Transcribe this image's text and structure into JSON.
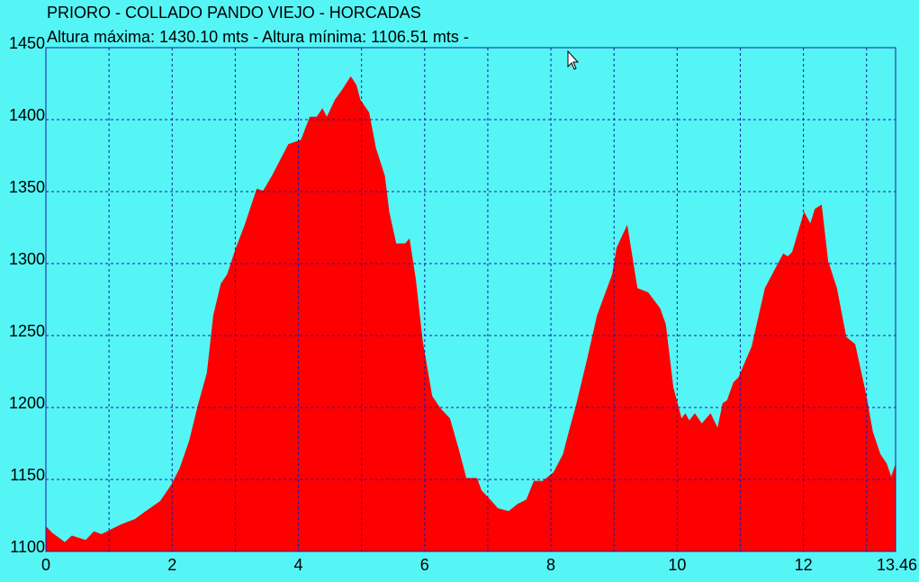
{
  "chart_data": {
    "type": "area",
    "title": "PRIORO - COLLADO PANDO VIEJO - HORCADAS",
    "subtitle": "Altura máxima: 1430.10 mts - Altura mínima: 1106.51 mts -",
    "color": "#ff0000",
    "background": "#55f5f5",
    "grid": true,
    "xlim": [
      0,
      13.46
    ],
    "ylim": [
      1100,
      1450
    ],
    "xticks": [
      0,
      2,
      4,
      6,
      8,
      10,
      12,
      13.46
    ],
    "x_minor_ticks": [
      1,
      3,
      5,
      7,
      9,
      11,
      13
    ],
    "yticks": [
      1100,
      1150,
      1200,
      1250,
      1300,
      1350,
      1400,
      1450
    ],
    "x": [
      0,
      0.1,
      0.3,
      0.41,
      0.63,
      0.76,
      0.88,
      1.2,
      1.41,
      1.55,
      1.81,
      1.98,
      2.12,
      2.27,
      2.41,
      2.55,
      2.65,
      2.77,
      2.87,
      3.01,
      3.15,
      3.34,
      3.44,
      3.58,
      3.84,
      4.04,
      4.18,
      4.29,
      4.38,
      4.45,
      4.58,
      4.69,
      4.83,
      4.92,
      4.98,
      5.12,
      5.23,
      5.37,
      5.44,
      5.55,
      5.69,
      5.76,
      5.86,
      5.97,
      6.12,
      6.26,
      6.4,
      6.54,
      6.66,
      6.83,
      6.9,
      7.04,
      7.16,
      7.33,
      7.47,
      7.61,
      7.73,
      7.87,
      8.04,
      8.19,
      8.3,
      8.4,
      8.57,
      8.73,
      8.97,
      9.04,
      9.21,
      9.37,
      9.54,
      9.73,
      9.82,
      9.94,
      10.07,
      10.13,
      10.19,
      10.28,
      10.39,
      10.53,
      10.64,
      10.72,
      10.79,
      10.89,
      10.97,
      11.18,
      11.39,
      11.56,
      11.68,
      11.75,
      11.82,
      12.01,
      12.11,
      12.18,
      12.29,
      12.39,
      12.53,
      12.68,
      12.82,
      13.0,
      13.1,
      13.22,
      13.32,
      13.39,
      13.46
    ],
    "values": [
      1117.5,
      1113,
      1106.5,
      1111,
      1108,
      1114,
      1112,
      1119,
      1122.5,
      1127,
      1135,
      1146,
      1158,
      1177,
      1202,
      1224,
      1264,
      1286,
      1292.5,
      1311,
      1327,
      1352,
      1350.6,
      1361,
      1383,
      1386,
      1402,
      1402,
      1408,
      1402,
      1414,
      1420.6,
      1430.1,
      1424,
      1414,
      1405,
      1380,
      1361,
      1336,
      1314,
      1314,
      1317.5,
      1289,
      1246,
      1208,
      1199,
      1192.5,
      1171,
      1151,
      1151,
      1142.5,
      1136,
      1130,
      1128,
      1133,
      1136,
      1149,
      1149,
      1155,
      1167.5,
      1186,
      1202,
      1233,
      1264,
      1292.5,
      1311,
      1327,
      1283,
      1280,
      1269,
      1258,
      1214,
      1192.5,
      1196,
      1191,
      1196,
      1189,
      1196,
      1186,
      1203,
      1205,
      1217.5,
      1221,
      1242.5,
      1283,
      1297,
      1307,
      1305,
      1308,
      1336,
      1328,
      1338,
      1341,
      1302,
      1283,
      1249,
      1244,
      1208,
      1183,
      1167.5,
      1161,
      1152,
      1161
    ]
  }
}
